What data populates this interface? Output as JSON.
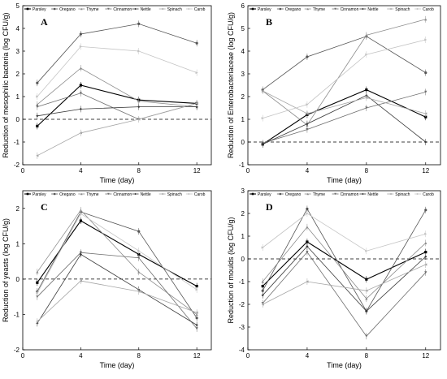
{
  "chart_data": [
    {
      "type": "line",
      "panel_label": "A",
      "xlabel": "Time (day)",
      "ylabel": "Reduction of mesophilic bacteria (log CFU/g)",
      "x": [
        1,
        4,
        8,
        12
      ],
      "xlim": [
        0,
        13
      ],
      "xticks": [
        0,
        4,
        8,
        12
      ],
      "ylim": [
        -2,
        5
      ],
      "yticks": [
        -2,
        -1,
        0,
        1,
        2,
        3,
        4,
        5
      ],
      "reference_line": 0,
      "legend": "top",
      "series": [
        {
          "name": "Parsley",
          "values": [
            -0.3,
            1.5,
            0.85,
            0.7
          ]
        },
        {
          "name": "Oregano",
          "values": [
            1.6,
            3.75,
            4.2,
            3.35
          ]
        },
        {
          "name": "Thyme",
          "values": [
            0.65,
            2.25,
            0.8,
            0.55
          ]
        },
        {
          "name": "Cinnamon",
          "values": [
            0.55,
            1.15,
            0.0,
            0.7
          ]
        },
        {
          "name": "Nettle",
          "values": [
            0.15,
            0.45,
            0.55,
            0.55
          ]
        },
        {
          "name": "Spinach",
          "values": [
            -1.6,
            -0.6,
            0.0,
            0.7
          ]
        },
        {
          "name": "Carob",
          "values": [
            1.0,
            3.2,
            3.0,
            2.05
          ]
        }
      ]
    },
    {
      "type": "line",
      "panel_label": "B",
      "xlabel": "Time (day)",
      "ylabel": "Reduction of Enterobacteriaceae (log CFU/g)",
      "x": [
        1,
        4,
        8,
        12
      ],
      "xlim": [
        0,
        13
      ],
      "xticks": [
        0,
        4,
        8,
        12
      ],
      "ylim": [
        -1,
        6
      ],
      "yticks": [
        -1,
        0,
        1,
        2,
        3,
        4,
        5,
        6
      ],
      "reference_line": 0,
      "legend": "top",
      "series": [
        {
          "name": "Parsley",
          "values": [
            -0.1,
            1.2,
            2.3,
            1.1
          ]
        },
        {
          "name": "Oregano",
          "values": [
            2.3,
            3.75,
            4.65,
            3.05
          ]
        },
        {
          "name": "Thyme",
          "values": [
            2.25,
            0.75,
            4.7,
            5.4
          ]
        },
        {
          "name": "Cinnamon",
          "values": [
            -0.05,
            0.55,
            1.5,
            2.2
          ]
        },
        {
          "name": "Nettle",
          "values": [
            -0.1,
            0.8,
            2.05,
            0.0
          ]
        },
        {
          "name": "Spinach",
          "values": [
            2.25,
            1.25,
            1.95,
            1.25
          ]
        },
        {
          "name": "Carob",
          "values": [
            1.05,
            1.65,
            3.85,
            4.5
          ]
        }
      ]
    },
    {
      "type": "line",
      "panel_label": "C",
      "xlabel": "Time (day)",
      "ylabel": "Reduction of yeasts (log CFU/g)",
      "x": [
        1,
        4,
        8,
        12
      ],
      "xlim": [
        0,
        13
      ],
      "xticks": [
        0,
        4,
        8,
        12
      ],
      "ylim": [
        -2,
        2.5
      ],
      "yticks": [
        -2,
        -1,
        0,
        1,
        2
      ],
      "reference_line": 0,
      "legend": "top",
      "series": [
        {
          "name": "Parsley",
          "values": [
            -0.1,
            1.65,
            0.7,
            -0.2
          ]
        },
        {
          "name": "Oregano",
          "values": [
            -0.35,
            1.9,
            1.35,
            -1.1
          ]
        },
        {
          "name": "Thyme",
          "values": [
            0.2,
            1.95,
            0.2,
            -1.0
          ]
        },
        {
          "name": "Cinnamon",
          "values": [
            -0.5,
            0.75,
            0.6,
            -1.4
          ]
        },
        {
          "name": "Nettle",
          "values": [
            -1.25,
            0.7,
            -0.3,
            -1.3
          ]
        },
        {
          "name": "Spinach",
          "values": [
            -1.2,
            -0.05,
            -0.35,
            -0.95
          ]
        },
        {
          "name": "Carob",
          "values": [
            -0.4,
            1.85,
            0.8,
            -0.3
          ]
        }
      ]
    },
    {
      "type": "line",
      "panel_label": "D",
      "xlabel": "Time (day)",
      "ylabel": "Reduction of moulds (log CFU/g)",
      "x": [
        1,
        4,
        8,
        12
      ],
      "xlim": [
        0,
        13
      ],
      "xticks": [
        0,
        4,
        8,
        12
      ],
      "ylim": [
        -4,
        3
      ],
      "yticks": [
        -4,
        -3,
        -2,
        -1,
        0,
        1,
        2,
        3
      ],
      "reference_line": 0,
      "legend": "top",
      "series": [
        {
          "name": "Parsley",
          "values": [
            -1.2,
            0.75,
            -0.9,
            0.3
          ]
        },
        {
          "name": "Oregano",
          "values": [
            -1.4,
            2.2,
            -2.3,
            2.15
          ]
        },
        {
          "name": "Thyme",
          "values": [
            -1.0,
            1.4,
            -1.75,
            0.7
          ]
        },
        {
          "name": "Cinnamon",
          "values": [
            -1.95,
            0.3,
            -3.4,
            -0.6
          ]
        },
        {
          "name": "Nettle",
          "values": [
            -1.6,
            0.55,
            -2.3,
            0.1
          ]
        },
        {
          "name": "Spinach",
          "values": [
            -2.0,
            -1.0,
            -1.4,
            -0.25
          ]
        },
        {
          "name": "Carob",
          "values": [
            0.5,
            2.0,
            0.35,
            1.1
          ]
        }
      ]
    }
  ]
}
